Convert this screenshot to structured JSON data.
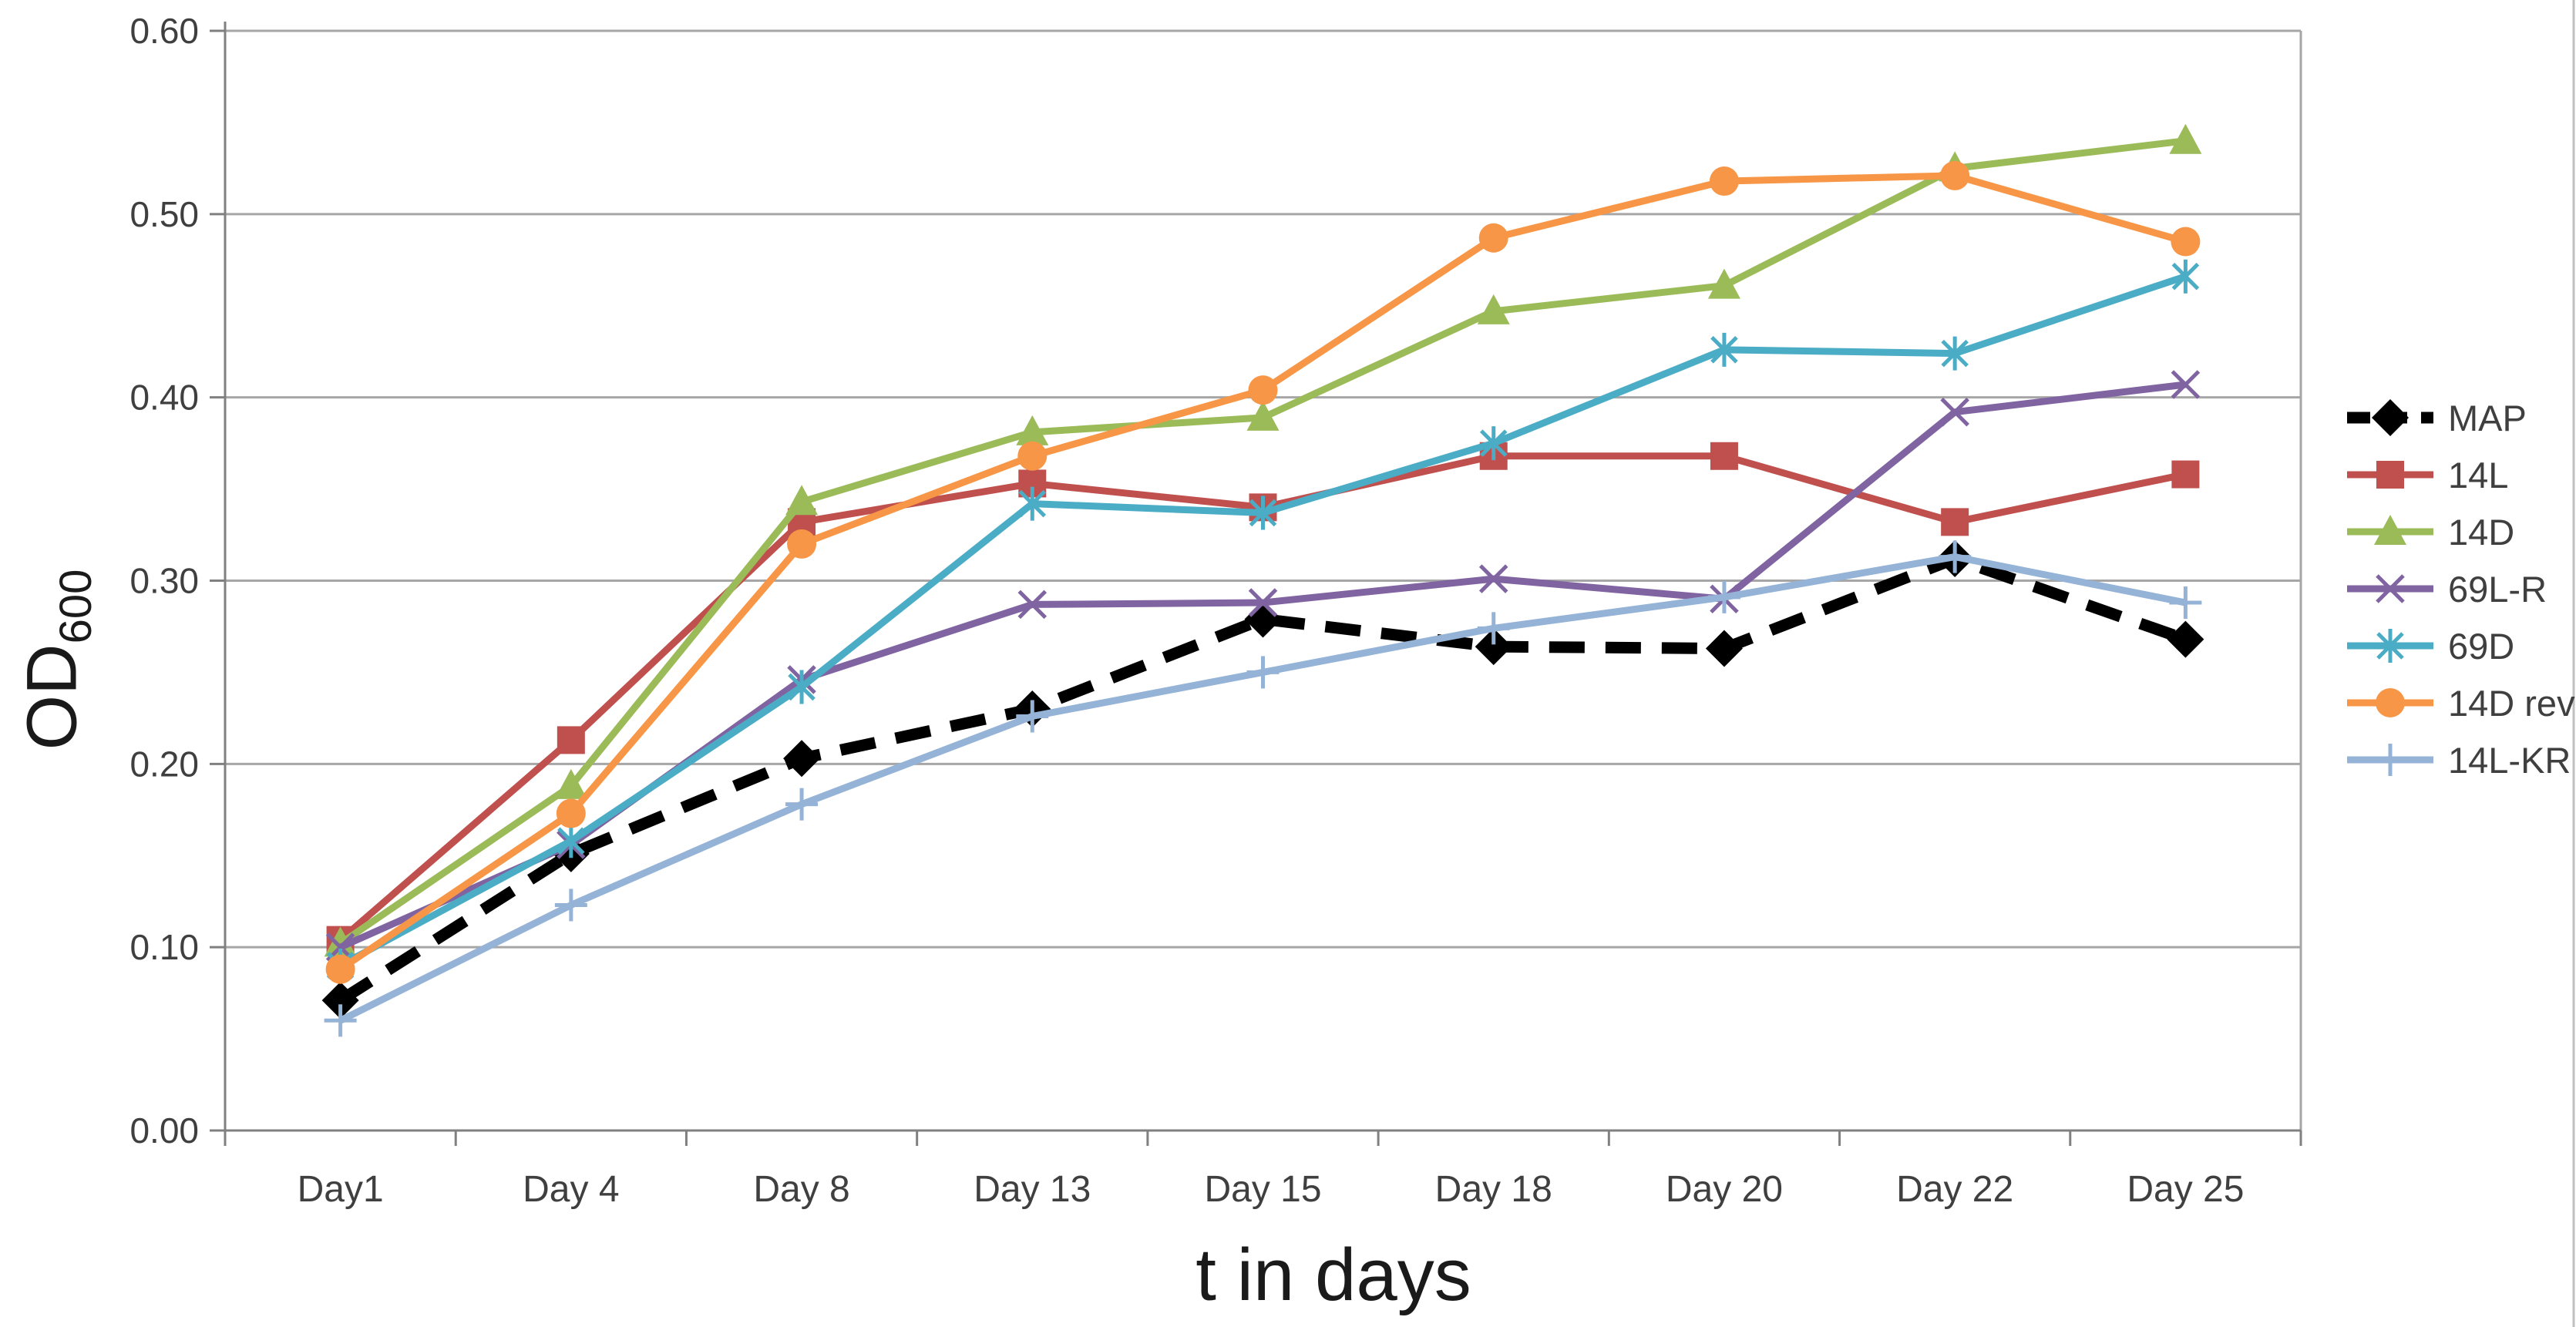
{
  "chart_data": {
    "type": "line",
    "title": "",
    "xlabel": "t in days",
    "ylabel_main": "OD",
    "ylabel_sub": "600",
    "x_categories": [
      "Day1",
      "Day 4",
      "Day 8",
      "Day 13",
      "Day 15",
      "Day 18",
      "Day 20",
      "Day 22",
      "Day 25"
    ],
    "y_ticks": [
      "0.00",
      "0.10",
      "0.20",
      "0.30",
      "0.40",
      "0.50",
      "0.60"
    ],
    "ylim": [
      0.0,
      0.6
    ],
    "y_tick_step": 0.1,
    "grid": true,
    "legend_position": "right",
    "series": [
      {
        "name": "MAP",
        "color": "#000000",
        "marker": "diamond",
        "line": "dashed",
        "values": [
          0.071,
          0.151,
          0.203,
          0.23,
          0.279,
          0.264,
          0.263,
          0.312,
          0.268
        ]
      },
      {
        "name": "14L",
        "color": "#C0504D",
        "marker": "square",
        "line": "solid",
        "values": [
          0.104,
          0.213,
          0.332,
          0.353,
          0.34,
          0.368,
          0.368,
          0.332,
          0.358
        ]
      },
      {
        "name": "14D",
        "color": "#9BBB59",
        "marker": "triangle",
        "line": "solid",
        "values": [
          0.102,
          0.188,
          0.343,
          0.381,
          0.389,
          0.447,
          0.461,
          0.525,
          0.54
        ]
      },
      {
        "name": "69L-R",
        "color": "#8064A2",
        "marker": "x",
        "line": "solid",
        "values": [
          0.1,
          0.156,
          0.246,
          0.287,
          0.288,
          0.301,
          0.29,
          0.392,
          0.407
        ]
      },
      {
        "name": "69D",
        "color": "#4BACC6",
        "marker": "asterisk",
        "line": "solid",
        "values": [
          0.09,
          0.158,
          0.242,
          0.342,
          0.337,
          0.375,
          0.426,
          0.424,
          0.466
        ]
      },
      {
        "name": "14D rev",
        "color": "#F79646",
        "marker": "circle",
        "line": "solid",
        "values": [
          0.088,
          0.173,
          0.32,
          0.368,
          0.404,
          0.487,
          0.518,
          0.521,
          0.485
        ]
      },
      {
        "name": "14L-KR",
        "color": "#95B3D7",
        "marker": "plus",
        "line": "solid",
        "values": [
          0.06,
          0.123,
          0.178,
          0.226,
          0.25,
          0.274,
          0.291,
          0.313,
          0.288
        ]
      }
    ],
    "colors": {
      "gridline": "#A6A6A6",
      "axis": "#808080",
      "tick_label": "#3F3F3F",
      "legend_label": "#3F3F3F",
      "title": "#1a1a1a",
      "background": "#FFFFFF",
      "chart_border": "#C0C0C0"
    }
  }
}
